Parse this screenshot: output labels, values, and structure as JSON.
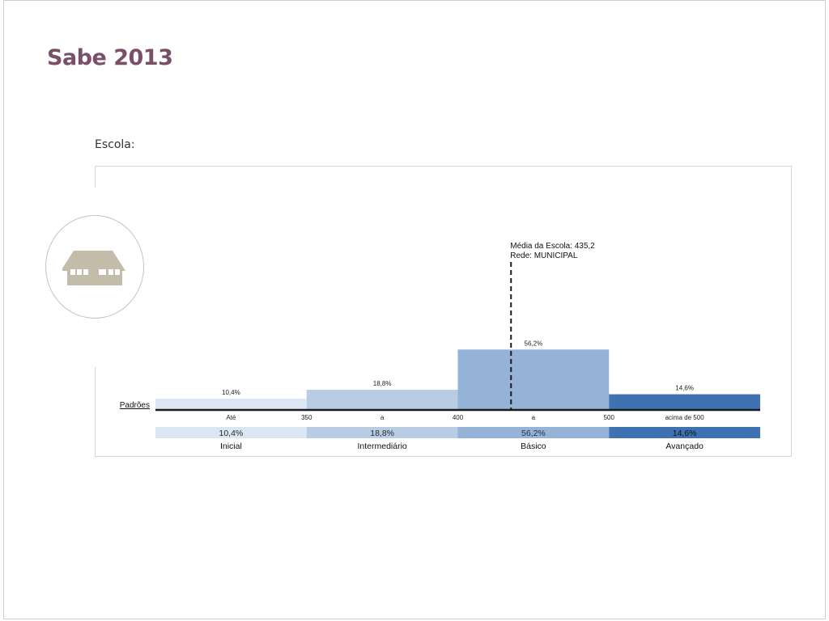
{
  "page": {
    "title": "Sabe 2013",
    "escola_label": "Escola:",
    "icon": "school-building-icon"
  },
  "chart_data": {
    "type": "bar",
    "annotation": {
      "line1": "Média da Escola: 435,2",
      "line2": "Rede: MUNICIPAL",
      "value": 435.2
    },
    "padroes_label": "Padrões",
    "scale_labels": [
      "Até",
      "350",
      "a",
      "400",
      "a",
      "500",
      "acima de 500"
    ],
    "categories": [
      "Inicial",
      "Intermediário",
      "Básico",
      "Avançado"
    ],
    "values": [
      10.4,
      18.8,
      56.2,
      14.6
    ],
    "value_labels": [
      "10,4%",
      "18,8%",
      "56,2%",
      "14,6%"
    ],
    "ranges": [
      [
        300,
        350
      ],
      [
        350,
        400
      ],
      [
        400,
        500
      ],
      [
        500,
        550
      ]
    ],
    "colors": [
      "#dce6f2",
      "#b8cce4",
      "#95b3d7",
      "#3f72b0"
    ],
    "table_text_colors": [
      "#2a2a2a",
      "#2a2a2a",
      "#1f2d4a",
      "#111111"
    ]
  }
}
